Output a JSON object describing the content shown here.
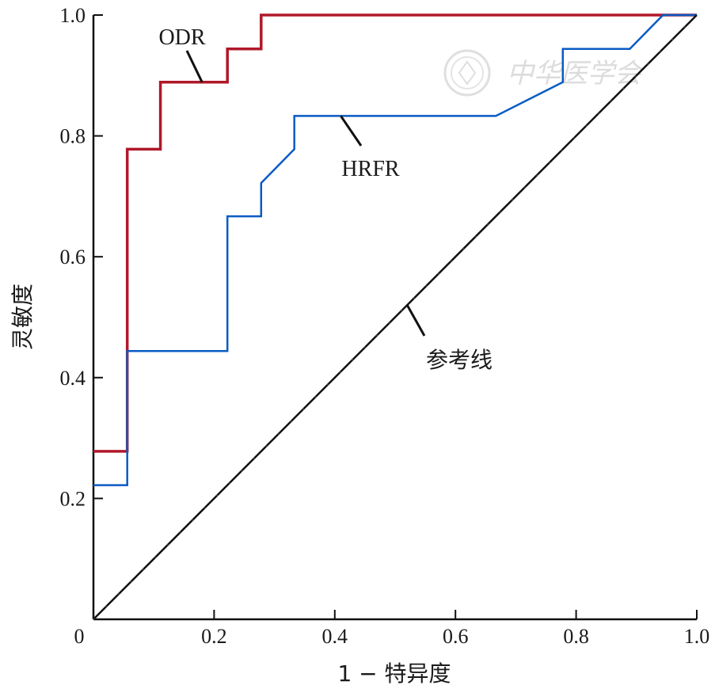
{
  "chart_data": {
    "type": "line",
    "xlabel": "1 − 特异度",
    "ylabel": "灵敏度",
    "xlim": [
      0,
      1
    ],
    "ylim": [
      0,
      1
    ],
    "x_ticks": [
      "0",
      "0.2",
      "0.4",
      "0.6",
      "0.8",
      "1.0"
    ],
    "y_ticks": [
      "0.2",
      "0.4",
      "0.6",
      "0.8",
      "1.0"
    ],
    "grid": false,
    "series": [
      {
        "name": "ODR",
        "color": "#b0182a",
        "points": [
          [
            0,
            0.278
          ],
          [
            0.056,
            0.278
          ],
          [
            0.056,
            0.778
          ],
          [
            0.111,
            0.778
          ],
          [
            0.111,
            0.889
          ],
          [
            0.222,
            0.889
          ],
          [
            0.222,
            0.944
          ],
          [
            0.278,
            0.944
          ],
          [
            0.278,
            1.0
          ],
          [
            1.0,
            1.0
          ]
        ]
      },
      {
        "name": "HRFR",
        "color": "#0a5bc4",
        "points": [
          [
            0,
            0.222
          ],
          [
            0.056,
            0.222
          ],
          [
            0.056,
            0.444
          ],
          [
            0.222,
            0.444
          ],
          [
            0.222,
            0.667
          ],
          [
            0.278,
            0.667
          ],
          [
            0.278,
            0.722
          ],
          [
            0.333,
            0.778
          ],
          [
            0.333,
            0.833
          ],
          [
            0.667,
            0.833
          ],
          [
            0.778,
            0.889
          ],
          [
            0.778,
            0.944
          ],
          [
            0.889,
            0.944
          ],
          [
            0.944,
            1.0
          ],
          [
            1.0,
            1.0
          ]
        ]
      },
      {
        "name": "参考线",
        "color": "#111111",
        "points": [
          [
            0,
            0
          ],
          [
            1,
            1
          ]
        ]
      }
    ],
    "annotations": [
      {
        "text": "ODR",
        "target": [
          0.18,
          0.889
        ]
      },
      {
        "text": "HRFR",
        "target": [
          0.41,
          0.833
        ]
      },
      {
        "text": "参考线",
        "target": [
          0.52,
          0.52
        ]
      }
    ]
  },
  "watermark": {
    "text": "中华医学会"
  }
}
